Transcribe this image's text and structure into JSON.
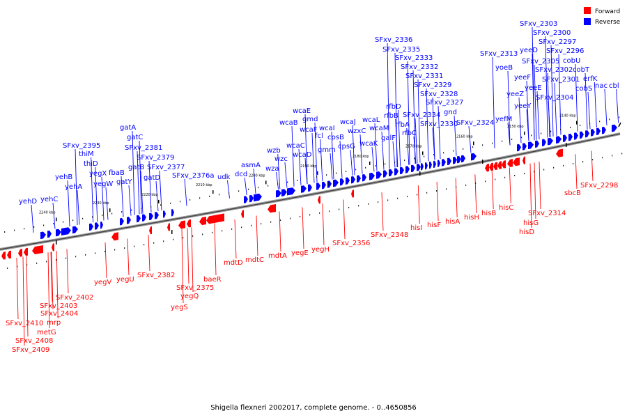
{
  "caption": "Shigella flexneri 2002017, complete genome. - 0..4650856",
  "legend": [
    {
      "label": "Forward",
      "color": "#ff0000"
    },
    {
      "label": "Reverse",
      "color": "#0000ff"
    }
  ],
  "ticks": [
    "2240 kbp",
    "2230 kbp",
    "2220 kbp",
    "2210 kbp",
    "2200 kbp",
    "2190 kbp",
    "2180 kbp",
    "2170 kbp",
    "2160 kbp",
    "2150 kbp",
    "2140 kbp"
  ],
  "reverse_labels": [
    "yehD",
    "yehC",
    "yehB",
    "yehA",
    "SFxv_2395",
    "thiM",
    "thiD",
    "yegX",
    "yegW",
    "fbaB",
    "gatY",
    "gatA",
    "gatC",
    "gatB",
    "SFxv_2381",
    "SFxv_2379",
    "gatD",
    "SFxv_2377",
    "SFxv_2376a",
    "udk",
    "dcd",
    "asmA",
    "wzb",
    "wzc",
    "wza",
    "wcaB",
    "wcaE",
    "gmd",
    "wcaF",
    "wcaC",
    "wcaD",
    "fcl",
    "wcaI",
    "gmm",
    "cpsB",
    "cpsG",
    "wcaJ",
    "wzxC",
    "wcaL",
    "wcaK",
    "wcaM",
    "galF",
    "rfbD",
    "rfbB",
    "rfbA",
    "rfbC",
    "SFxv_2336",
    "SFxv_2335",
    "SFxv_2333",
    "SFxv_2332",
    "SFxv_2331",
    "SFxv_2329",
    "SFxv_2328",
    "SFxv_2327",
    "gnd",
    "SFxv_2334",
    "SFxv_2330",
    "SFxv_2324",
    "SFxv_2313",
    "yoeB",
    "yefM",
    "yeeF",
    "yeeZ",
    "yeeE",
    "yeeY",
    "yeeD",
    "SFxv_2303",
    "SFxv_2300",
    "SFxv_2297",
    "SFxv_2296",
    "SFxv_2305",
    "cobU",
    "SFxv_2302",
    "cobT",
    "SFxv_2301",
    "erfK",
    "cobS",
    "nac",
    "cbl",
    "SFxv_2304"
  ],
  "forward_labels": [
    "SFxv_2402",
    "SFxv_2403",
    "SFxv_2404",
    "mrp",
    "metG",
    "SFxv_2410",
    "SFxv_2408",
    "SFxv_2409",
    "yegV",
    "yegU",
    "SFxv_2382",
    "yegS",
    "SFxv_2375",
    "yegQ",
    "baeR",
    "mdtD",
    "mdtC",
    "mdtA",
    "yegE",
    "yegH",
    "SFxv_2356",
    "SFxv_2348",
    "hisI",
    "hisF",
    "hisA",
    "hisH",
    "hisB",
    "hisC",
    "hisG",
    "hisD",
    "SFxv_2314",
    "sbcB",
    "SFxv_2298"
  ]
}
